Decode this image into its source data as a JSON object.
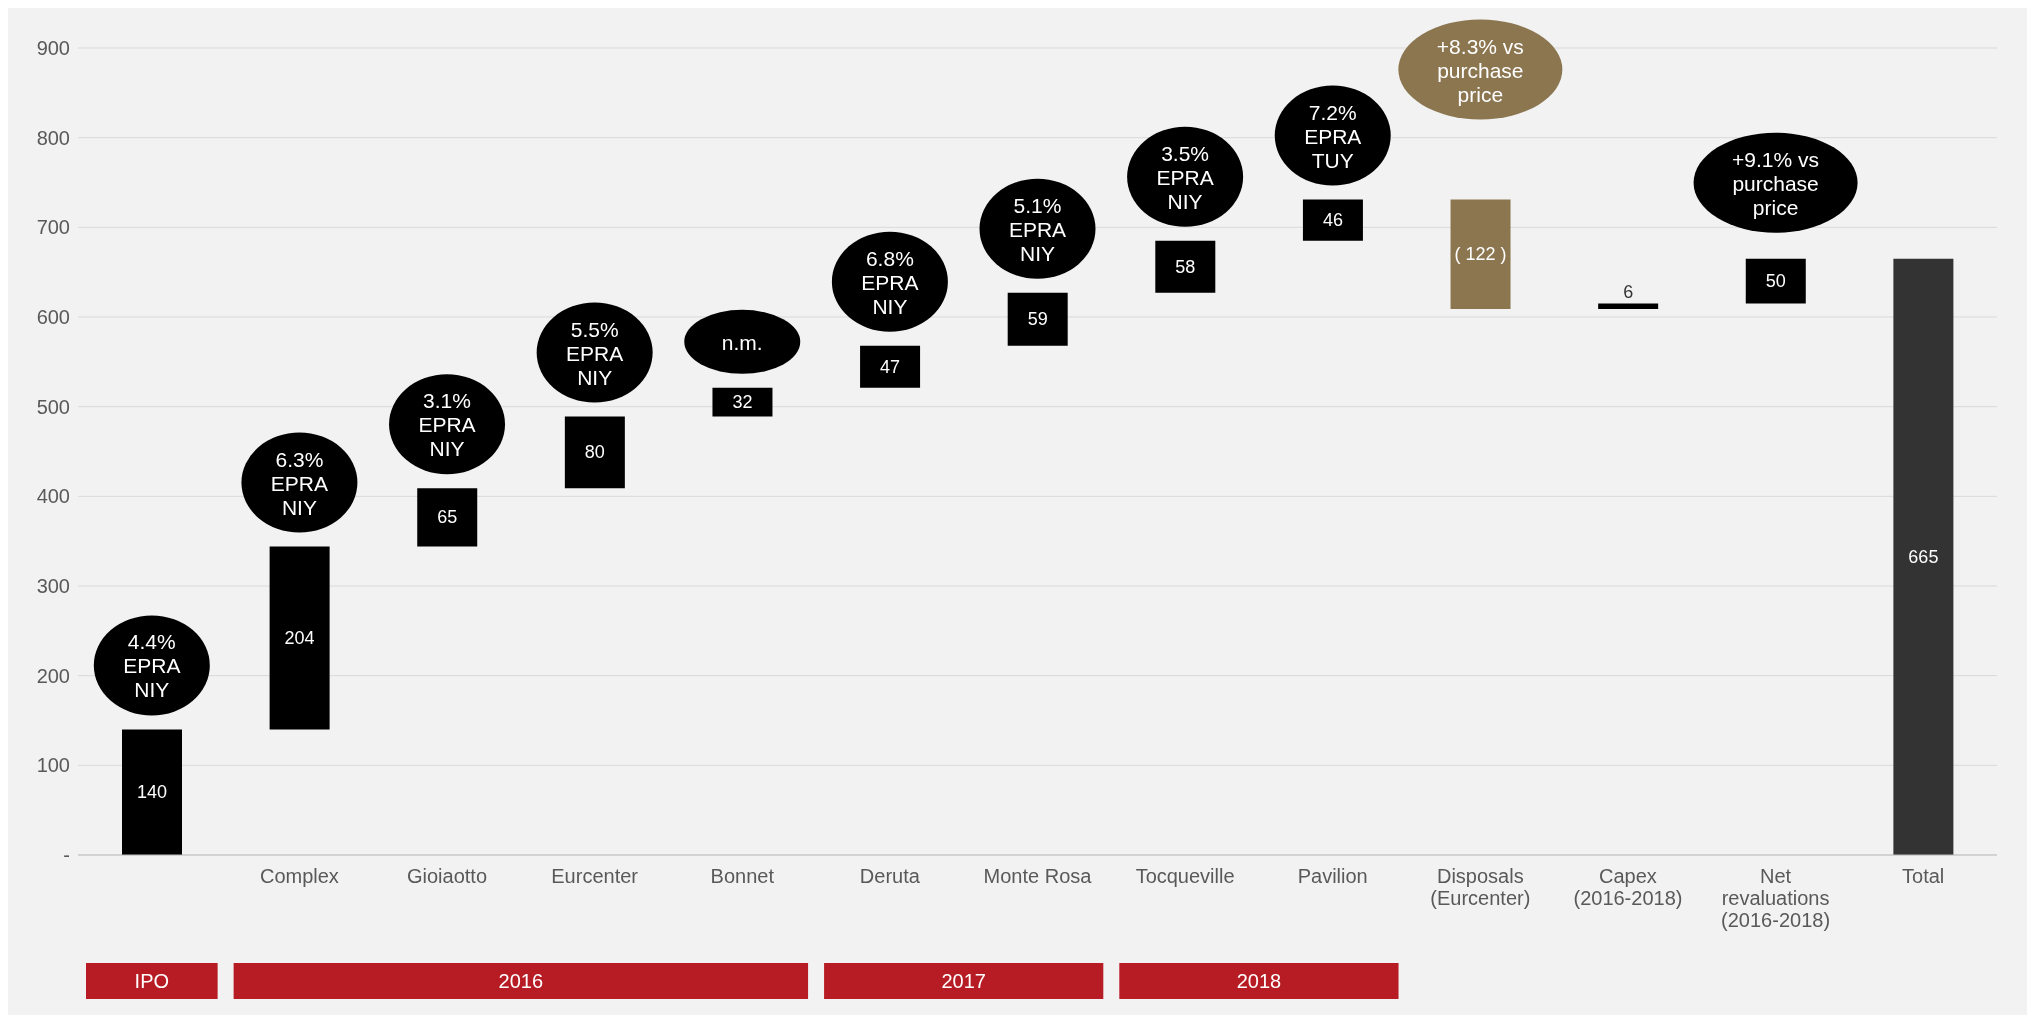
{
  "chart_data": {
    "type": "bar",
    "categories": [
      null,
      "Complex",
      "Gioiaotto",
      "Eurcenter",
      "Bonnet",
      "Deruta",
      "Monte Rosa",
      "Tocqueville",
      "Pavilion",
      "Disposals (Eurcenter)",
      "Capex (2016-2018)",
      "Net revaluations (2016-2018)",
      "Total"
    ],
    "values": [
      140,
      204,
      65,
      80,
      32,
      47,
      59,
      58,
      46,
      -122,
      6,
      50,
      665
    ],
    "base": [
      0,
      140,
      344,
      409,
      489,
      521,
      568,
      627,
      685,
      731,
      609,
      615,
      0
    ],
    "colors": [
      "#000000",
      "#000000",
      "#000000",
      "#000000",
      "#000000",
      "#000000",
      "#000000",
      "#000000",
      "#000000",
      "#8b7650",
      "#000000",
      "#000000",
      "#333333"
    ],
    "value_labels": [
      "140",
      "204",
      "65",
      "80",
      "32",
      "47",
      "59",
      "58",
      "46",
      "( 122 )",
      "6",
      "50",
      "665"
    ],
    "ylim": [
      0,
      900
    ],
    "yticks": [
      {
        "value": 0,
        "label": "-"
      },
      100,
      200,
      300,
      400,
      500,
      600,
      700,
      800,
      900
    ],
    "grid": "y",
    "legend": false,
    "annotations": [
      "4.4% EPRA NIY",
      "6.3% EPRA NIY",
      "3.1% EPRA NIY",
      "5.5% EPRA NIY",
      "n.m.",
      "6.8% EPRA NIY",
      "5.1% EPRA NIY",
      "3.5% EPRA NIY",
      "7.2% EPRA TUY",
      "+8.3% vs purchase price",
      "+9.1% vs purchase price",
      "IPO",
      "2016",
      "2017",
      "2018"
    ]
  }
}
